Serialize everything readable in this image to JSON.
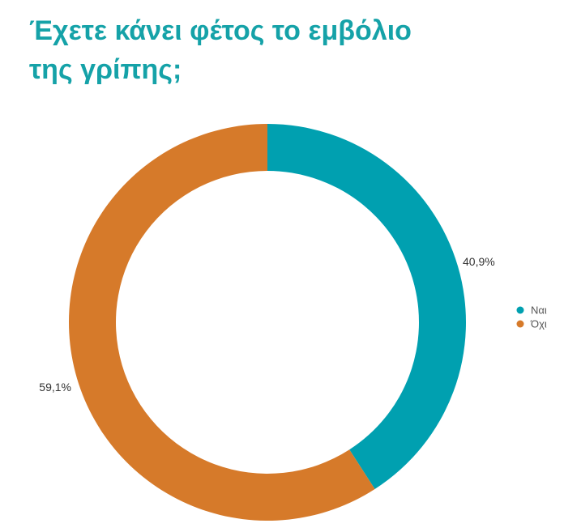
{
  "title": "Έχετε κάνει φέτος το εμβόλιο\nτης γρίπης;",
  "chart_data": {
    "type": "pie",
    "variant": "donut",
    "title": "Έχετε κάνει φέτος το εμβόλιο της γρίπης;",
    "categories": [
      "Ναι",
      "Όχι"
    ],
    "values": [
      40.9,
      59.1
    ],
    "labels": [
      "40,9%",
      "59,1%"
    ],
    "colors": [
      "#00a0b0",
      "#d67a2a"
    ],
    "start_angle": "12 o'clock, clockwise",
    "legend": "right"
  }
}
